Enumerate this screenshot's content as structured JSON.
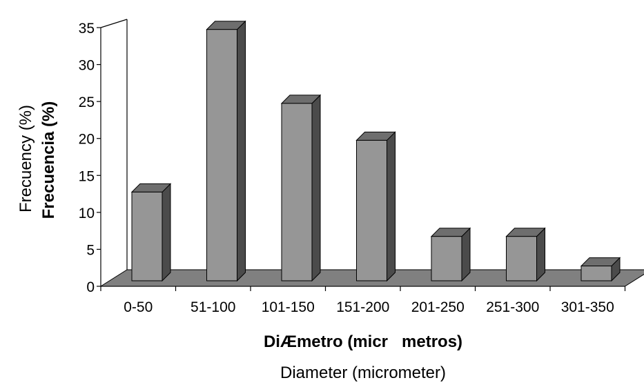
{
  "chart_data": {
    "type": "bar",
    "categories": [
      "0-50",
      "51-100",
      "101-150",
      "151-200",
      "201-250",
      "251-300",
      "301-350"
    ],
    "values": [
      12,
      34,
      24,
      19,
      6,
      6,
      2
    ],
    "ylim": [
      0,
      35
    ],
    "yticks": [
      "0",
      "5",
      "10",
      "15",
      "20",
      "25",
      "30",
      "35"
    ],
    "ylabel": "Frecuencia (%)",
    "ylabel_alt": "Frecuency (%)",
    "xlabel": "DiÆmetro (micr   metros)",
    "xlabel_alt": "Diameter (micrometer)",
    "grid": false,
    "legend": "none",
    "style": "3d-column",
    "colors": {
      "bar_front": "#969696",
      "bar_side": "#4b4b4b",
      "bar_top": "#6e6e6e",
      "floor": "#808080",
      "axis": "#000000"
    }
  }
}
